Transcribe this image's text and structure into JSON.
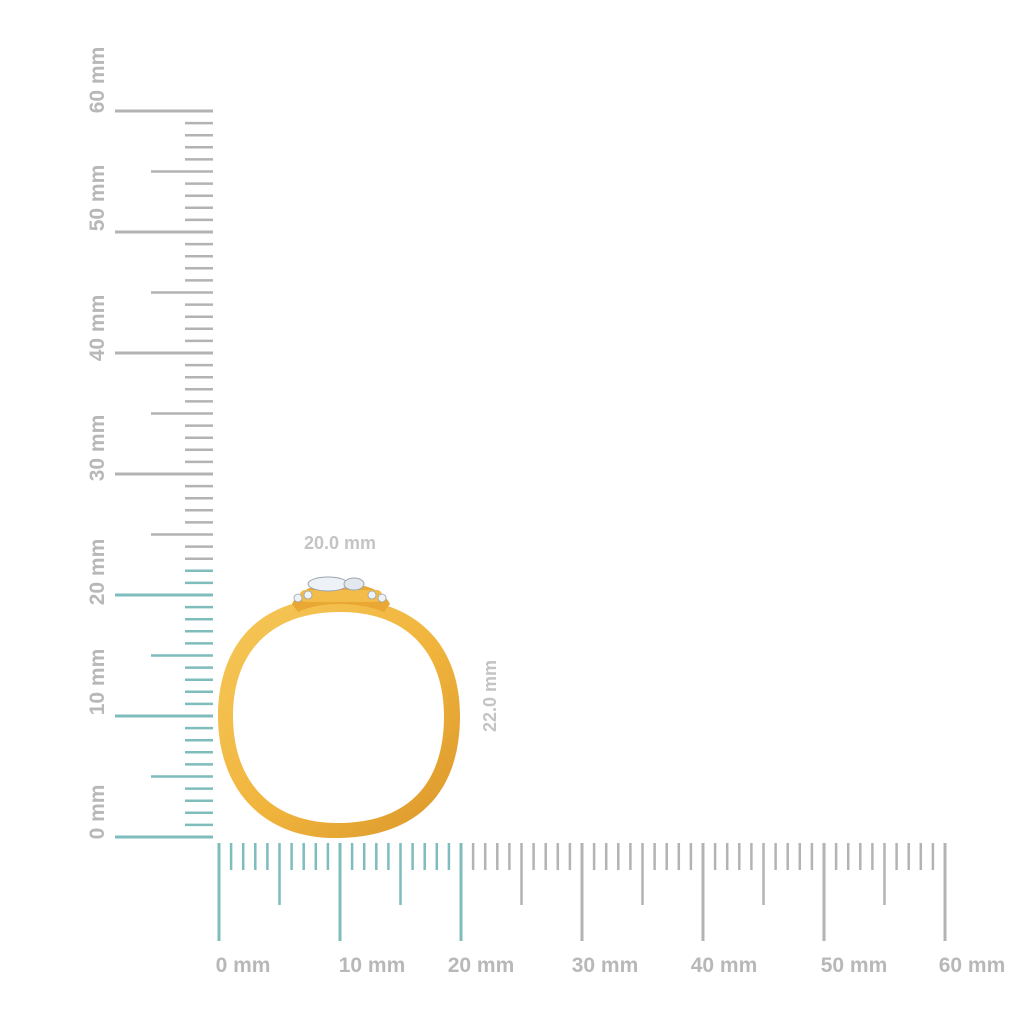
{
  "scale": {
    "unit": "mm",
    "max_mm": 60,
    "minor_step_mm": 1,
    "major_step_mm": 10,
    "colors": {
      "highlight": "#7fbcbc",
      "normal": "#b3b3b3",
      "text": "#b8b8b8"
    }
  },
  "horizontal_ruler": {
    "highlight_to_mm": 20,
    "labels": [
      "0 mm",
      "10 mm",
      "20 mm",
      "30 mm",
      "40 mm",
      "50 mm",
      "60 mm"
    ]
  },
  "vertical_ruler": {
    "highlight_to_mm": 22,
    "labels": [
      "0 mm",
      "10 mm",
      "20 mm",
      "30 mm",
      "40 mm",
      "50 mm",
      "60 mm"
    ]
  },
  "ring": {
    "width_label": "20.0 mm",
    "height_label": "22.0 mm",
    "width_mm": 20.0,
    "height_mm": 22.0,
    "metal_color": "#f0b43c",
    "metal_shadow": "#d9952a",
    "stone_color": "#eef2f6"
  }
}
